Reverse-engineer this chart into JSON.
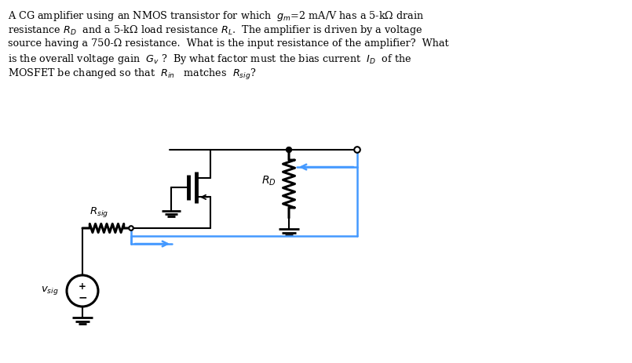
{
  "bg_color": "#ffffff",
  "black": "#000000",
  "blue": "#4499ff",
  "lw": 1.5,
  "lw_thick": 2.2,
  "lw_fat": 3.5,
  "text_line1": "A CG amplifier using an NMOS transistor for which  $g_m$=2 mA/V has a 5-kΩ drain",
  "text_line2": "resistance $R_D$  and a 5-kΩ load resistance $R_L$.  The amplifier is driven by a voltage",
  "text_line3": "source having a 750-Ω resistance.  What is the input resistance of the amplifier?  What",
  "text_line4": "is the overall voltage gain  $G_v$ ?  By what factor must the bias current  $I_D$  of the",
  "text_line5": "MOSFET be changed so that  $R_{in}$   matches  $R_{sig}$?"
}
